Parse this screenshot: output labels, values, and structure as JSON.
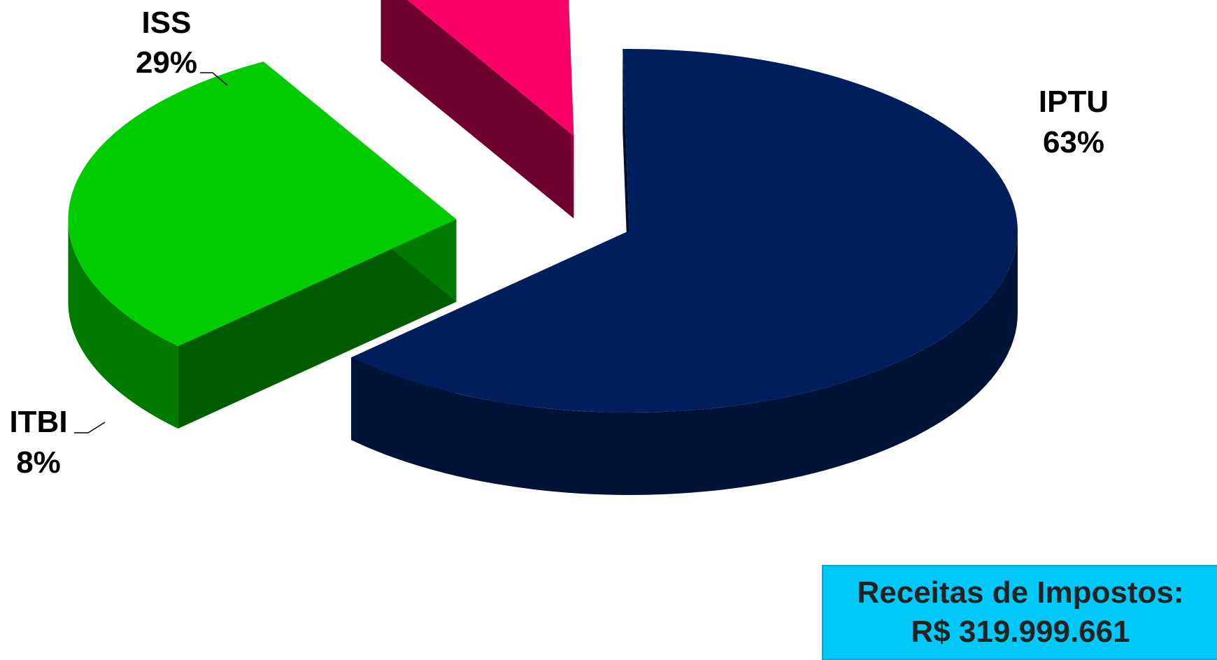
{
  "chart_data": {
    "type": "pie",
    "style": "3d-exploded",
    "slices": [
      {
        "name": "IPTU",
        "label": "IPTU",
        "percent_label": "63%",
        "value": 63,
        "color": "#001e5c"
      },
      {
        "name": "ISS",
        "label": "ISS",
        "percent_label": "29%",
        "value": 29,
        "color": "#00cc00"
      },
      {
        "name": "ITBI",
        "label": "ITBI",
        "percent_label": "8%",
        "value": 8,
        "color": "#f80065"
      }
    ]
  },
  "total_box": {
    "line1": "Receitas de Impostos:",
    "line2": "R$ 319.999.661",
    "color": "#00c8f8"
  }
}
